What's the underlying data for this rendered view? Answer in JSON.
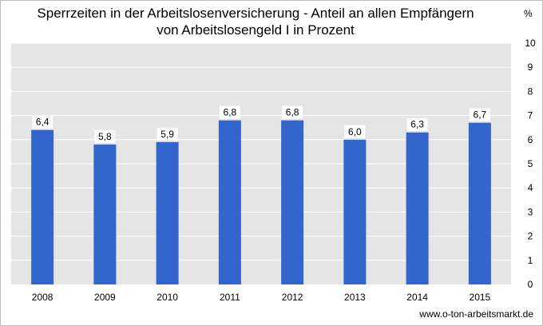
{
  "chart_data": {
    "type": "bar",
    "title_lines": [
      "Sperrzeiten in der Arbeitslosenversicherung - Anteil an allen Empfängern",
      "von Arbeitslosengeld I in Prozent"
    ],
    "y_unit": "%",
    "categories": [
      "2008",
      "2009",
      "2010",
      "2011",
      "2012",
      "2013",
      "2014",
      "2015"
    ],
    "values": [
      6.4,
      5.8,
      5.9,
      6.8,
      6.8,
      6.0,
      6.3,
      6.7
    ],
    "value_labels": [
      "6,4",
      "5,8",
      "5,9",
      "6,8",
      "6,8",
      "6,0",
      "6,3",
      "6,7"
    ],
    "ylim": [
      0,
      10
    ],
    "yticks": [
      0,
      1,
      2,
      3,
      4,
      5,
      6,
      7,
      8,
      9,
      10
    ],
    "y_axis_position": "right",
    "grid": true,
    "legend": "none",
    "colors": {
      "bar": "#3366cc",
      "plot_background": "#e5e5e5",
      "gridline": "#ffffff"
    }
  },
  "credit": "www.o-ton-arbeitsmarkt.de"
}
